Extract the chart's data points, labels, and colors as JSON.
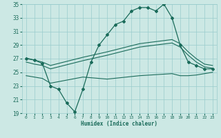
{
  "bg_color": "#cce8e4",
  "line_color": "#1a6b5a",
  "grid_color": "#99cccc",
  "xlabel": "Humidex (Indice chaleur)",
  "xlim": [
    -0.5,
    23.5
  ],
  "ylim": [
    19,
    35
  ],
  "xticks": [
    0,
    1,
    2,
    3,
    4,
    5,
    6,
    7,
    8,
    9,
    10,
    11,
    12,
    13,
    14,
    15,
    16,
    17,
    18,
    19,
    20,
    21,
    22,
    23
  ],
  "yticks": [
    19,
    21,
    23,
    25,
    27,
    29,
    31,
    33,
    35
  ],
  "main_x": [
    0,
    1,
    2,
    3,
    4,
    5,
    6,
    7,
    8,
    9,
    10,
    11,
    12,
    13,
    14,
    15,
    16,
    17,
    18,
    19,
    20,
    21,
    22,
    23
  ],
  "main_y": [
    27.0,
    26.8,
    26.3,
    23.0,
    22.5,
    20.5,
    19.2,
    22.5,
    26.5,
    29.0,
    30.5,
    32.0,
    32.5,
    34.0,
    34.5,
    34.5,
    34.0,
    35.0,
    33.0,
    29.0,
    26.5,
    26.0,
    25.5,
    25.5
  ],
  "upper1_x": [
    0,
    1,
    2,
    3,
    7,
    10,
    14,
    18,
    19,
    20,
    21,
    22,
    23
  ],
  "upper1_y": [
    27.1,
    26.8,
    26.5,
    26.0,
    27.2,
    28.0,
    29.2,
    29.8,
    29.2,
    28.0,
    27.0,
    26.2,
    26.0
  ],
  "upper2_x": [
    0,
    1,
    2,
    3,
    7,
    10,
    14,
    18,
    19,
    20,
    21,
    22,
    23
  ],
  "upper2_y": [
    26.5,
    26.2,
    26.0,
    25.5,
    26.7,
    27.5,
    28.7,
    29.3,
    28.7,
    27.5,
    26.5,
    25.8,
    25.6
  ],
  "lower_x": [
    0,
    1,
    2,
    3,
    7,
    10,
    14,
    18,
    19,
    20,
    21,
    22,
    23
  ],
  "lower_y": [
    24.5,
    24.3,
    24.1,
    23.4,
    24.3,
    24.0,
    24.5,
    24.8,
    24.5,
    24.5,
    24.6,
    24.8,
    25.0
  ]
}
